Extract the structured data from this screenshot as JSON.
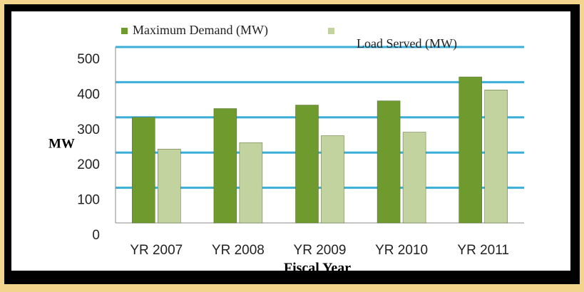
{
  "chart_data": {
    "type": "bar",
    "x_label": "Fiscal Year",
    "y_label": "MW",
    "categories": [
      "YR 2007",
      "YR 2008",
      "YR 2009",
      "YR 2010",
      "YR 2011"
    ],
    "series": [
      {
        "name": "Maximum  Demand (MW)",
        "color": "#6e9a2e",
        "values": [
          300,
          325,
          335,
          347,
          415
        ]
      },
      {
        "name": "Load Served (MW)",
        "color": "#c3d3a0",
        "values": [
          210,
          228,
          248,
          258,
          378
        ]
      }
    ],
    "ylim": [
      0,
      500
    ],
    "yticks": [
      0,
      100,
      200,
      300,
      400,
      500
    ],
    "grid": true,
    "grid_color": "#3aaed6"
  }
}
